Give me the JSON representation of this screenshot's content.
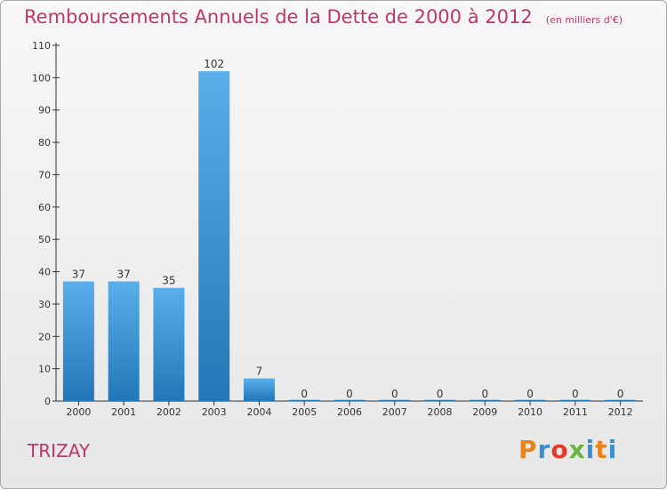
{
  "header": {
    "title": "Remboursements Annuels de la Dette de 2000 à 2012",
    "subtitle": "(en milliers d'€)"
  },
  "footer": {
    "commune": "TRIZAY",
    "brand": "Proxiti",
    "brand_colors": [
      "#e8841e",
      "#3c8ecf",
      "#e23b2b",
      "#6cb33f",
      "#3c8ecf",
      "#e8841e",
      "#3c8ecf"
    ]
  },
  "colors": {
    "title": "#c0366b",
    "bar_top": "#5aaeea",
    "bar_bottom": "#2277b8",
    "axis": "#333333",
    "background_top": "#f7f7f7",
    "background_bottom": "#e7e7e7"
  },
  "chart_data": {
    "type": "bar",
    "title": "Remboursements Annuels de la Dette de 2000 à 2012",
    "subtitle": "(en milliers d'€)",
    "categories": [
      "2000",
      "2001",
      "2002",
      "2003",
      "2004",
      "2005",
      "2006",
      "2007",
      "2008",
      "2009",
      "2010",
      "2011",
      "2012"
    ],
    "values": [
      37,
      37,
      35,
      102,
      7,
      0,
      0,
      0,
      0,
      0,
      0,
      0,
      0
    ],
    "value_labels": [
      "37",
      "37",
      "35",
      "102",
      "7",
      "0",
      "0",
      "0",
      "0",
      "0",
      "0",
      "0",
      "0"
    ],
    "xlabel": "",
    "ylabel": "",
    "ylim": [
      0,
      110
    ],
    "yticks": [
      0,
      10,
      20,
      30,
      40,
      50,
      60,
      70,
      80,
      90,
      100,
      110
    ],
    "ytick_labels": [
      "0",
      "10",
      "20",
      "30",
      "40",
      "50",
      "60",
      "70",
      "80",
      "90",
      "100",
      "110"
    ],
    "grid": false,
    "legend": "none"
  }
}
